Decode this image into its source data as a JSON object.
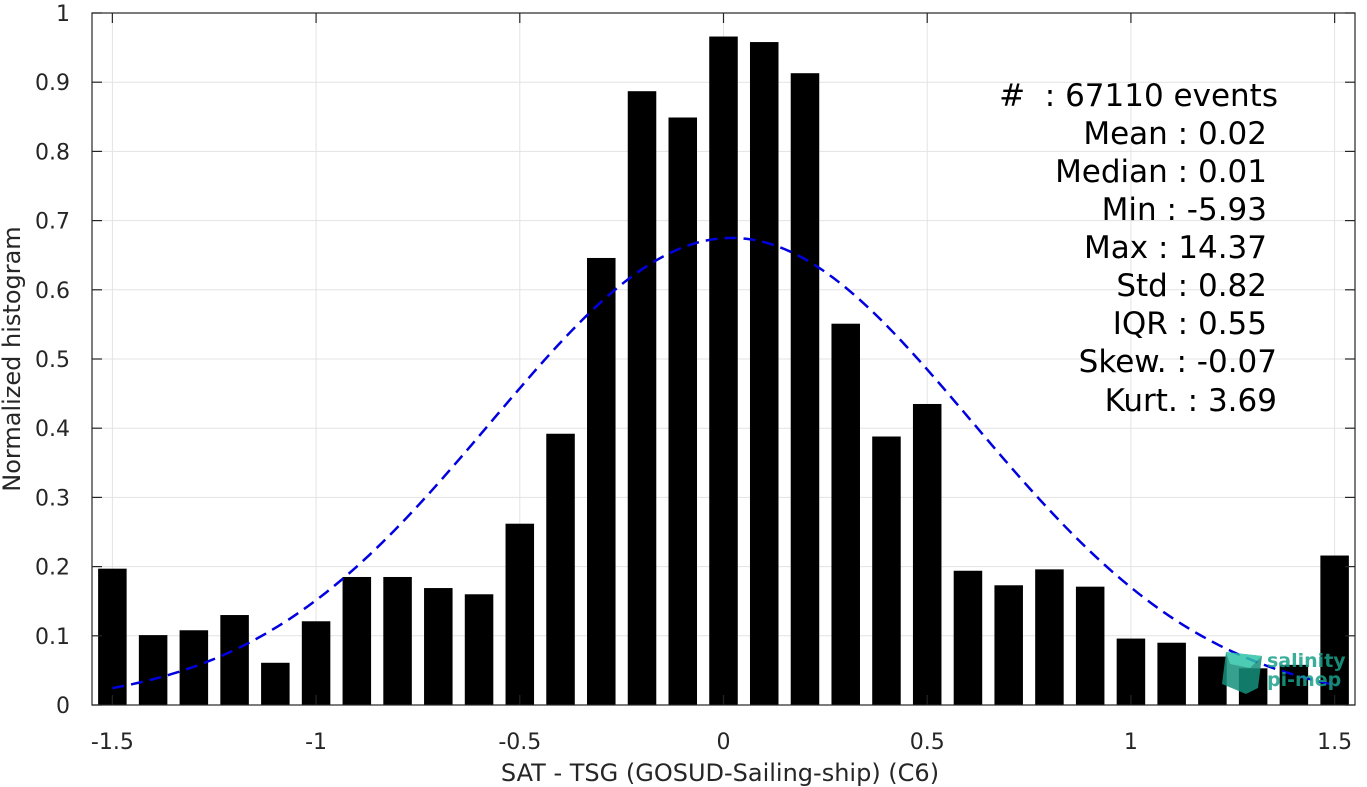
{
  "chart_data": {
    "type": "bar",
    "xlabel": "SAT - TSG (GOSUD-Sailing-ship) (C6)",
    "ylabel": "Normalized histogram",
    "xlim": [
      -1.55,
      1.55
    ],
    "ylim": [
      0,
      1
    ],
    "grid": true,
    "x_ticks": [
      -1.5,
      -1,
      -0.5,
      0,
      0.5,
      1,
      1.5
    ],
    "x_tick_labels": [
      "-1.5",
      "-1",
      "-0.5",
      "0",
      "0.5",
      "1",
      "1.5"
    ],
    "y_ticks": [
      0,
      0.1,
      0.2,
      0.3,
      0.4,
      0.5,
      0.6,
      0.7,
      0.8,
      0.9,
      1
    ],
    "y_tick_labels": [
      "0",
      "0.1",
      "0.2",
      "0.3",
      "0.4",
      "0.5",
      "0.6",
      "0.7",
      "0.8",
      "0.9",
      "1"
    ],
    "bar_color": "#000000",
    "bar_width": 0.07,
    "x": [
      -1.5,
      -1.4,
      -1.3,
      -1.2,
      -1.1,
      -1.0,
      -0.9,
      -0.8,
      -0.7,
      -0.6,
      -0.5,
      -0.4,
      -0.3,
      -0.2,
      -0.1,
      0.0,
      0.1,
      0.2,
      0.3,
      0.4,
      0.5,
      0.6,
      0.7,
      0.8,
      0.9,
      1.0,
      1.1,
      1.2,
      1.3,
      1.4,
      1.5
    ],
    "values": [
      0.197,
      0.101,
      0.108,
      0.13,
      0.061,
      0.121,
      0.185,
      0.185,
      0.169,
      0.16,
      0.262,
      0.392,
      0.646,
      0.887,
      0.849,
      0.966,
      0.958,
      0.913,
      0.551,
      0.388,
      0.435,
      0.194,
      0.173,
      0.196,
      0.171,
      0.096,
      0.09,
      0.07,
      0.053,
      0.058,
      0.216
    ],
    "gaussian_fit": {
      "style": "dashed",
      "color": "#0000e0",
      "mean": 0.02,
      "std": 0.59,
      "peak": 0.675,
      "x_range": [
        -1.5,
        1.5
      ]
    },
    "stats": [
      {
        "label": "#",
        "sep": " : ",
        "value": "67110 events"
      },
      {
        "label": "Mean",
        "sep": " : ",
        "value": "0.02"
      },
      {
        "label": "Median",
        "sep": " : ",
        "value": "0.01"
      },
      {
        "label": "Min",
        "sep": " : ",
        "value": "-5.93"
      },
      {
        "label": "Max",
        "sep": " : ",
        "value": "14.37"
      },
      {
        "label": "Std",
        "sep": " : ",
        "value": "0.82"
      },
      {
        "label": "IQR",
        "sep": " : ",
        "value": "0.55"
      },
      {
        "label": "Skew.",
        "sep": " : ",
        "value": "-0.07"
      },
      {
        "label": "Kurt.",
        "sep": " : ",
        "value": "3.69"
      }
    ]
  },
  "stats_lines": {
    "count": "#  : 67110 events",
    "mean": "Mean : 0.02",
    "median": "Median : 0.01",
    "min": "Min : -5.93",
    "max": "Max : 14.37",
    "std": "Std : 0.82",
    "iqr": "IQR : 0.55",
    "skew": "Skew. : -0.07",
    "kurt": "Kurt. : 3.69"
  },
  "logo": {
    "line1": "salinity",
    "line2": "pi-mep",
    "color": "#1aa08a"
  }
}
